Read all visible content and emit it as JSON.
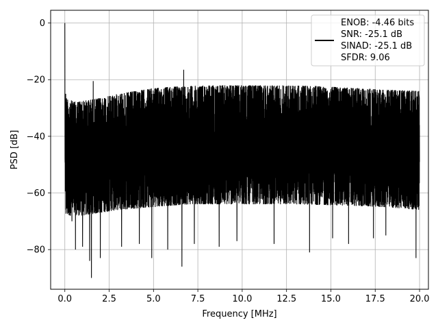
{
  "chart_data": {
    "type": "line",
    "xlabel": "Frequency [MHz]",
    "ylabel": "PSD [dB]",
    "xlim": [
      -0.8,
      20.5
    ],
    "ylim": [
      -94,
      4.5
    ],
    "grid": true,
    "x_ticks": [
      0.0,
      2.5,
      5.0,
      7.5,
      10.0,
      12.5,
      15.0,
      17.5,
      20.0
    ],
    "x_tick_labels": [
      "0.0",
      "2.5",
      "5.0",
      "7.5",
      "10.0",
      "12.5",
      "15.0",
      "17.5",
      "20.0"
    ],
    "y_ticks": [
      0,
      -20,
      -40,
      -60,
      -80
    ],
    "y_tick_labels": [
      "0",
      "−20",
      "−40",
      "−60",
      "−80"
    ],
    "legend": {
      "placement": "top-right",
      "entries": [
        "ENOB: -4.46 bits",
        "SNR: -25.1 dB",
        "SINAD: -25.1 dB",
        "SFDR: 9.06"
      ]
    },
    "series": [
      {
        "color": "#000000",
        "x_range": [
          0,
          20
        ],
        "points": 4000,
        "upper_envelope": [
          [
            0.0,
            -26
          ],
          [
            0.5,
            -27.8
          ],
          [
            1.0,
            -27.5
          ],
          [
            2.0,
            -26.5
          ],
          [
            3.0,
            -25
          ],
          [
            4.0,
            -24
          ],
          [
            5.0,
            -23
          ],
          [
            6.0,
            -22.5
          ],
          [
            8.0,
            -22
          ],
          [
            10.0,
            -22
          ],
          [
            12.0,
            -22
          ],
          [
            14.0,
            -22.2
          ],
          [
            16.0,
            -22.8
          ],
          [
            18.0,
            -23.5
          ],
          [
            20.0,
            -24
          ]
        ],
        "lower_envelope": [
          [
            0.0,
            -68
          ],
          [
            1.0,
            -68
          ],
          [
            3.0,
            -66
          ],
          [
            5.0,
            -65
          ],
          [
            7.0,
            -64
          ],
          [
            10.0,
            -64
          ],
          [
            13.0,
            -64
          ],
          [
            16.0,
            -64.5
          ],
          [
            18.0,
            -65
          ],
          [
            20.0,
            -66
          ]
        ],
        "peaks": [
          {
            "x": 0.0,
            "y": 0
          },
          {
            "x": 0.05,
            "y": -25
          },
          {
            "x": 1.6,
            "y": -20.5
          },
          {
            "x": 6.7,
            "y": -16.5
          }
        ],
        "dips": [
          {
            "x": 0.4,
            "y": -70
          },
          {
            "x": 0.6,
            "y": -80
          },
          {
            "x": 1.0,
            "y": -79
          },
          {
            "x": 1.4,
            "y": -84
          },
          {
            "x": 1.5,
            "y": -90
          },
          {
            "x": 2.0,
            "y": -83
          },
          {
            "x": 3.2,
            "y": -79
          },
          {
            "x": 4.2,
            "y": -78
          },
          {
            "x": 4.9,
            "y": -83
          },
          {
            "x": 5.8,
            "y": -80
          },
          {
            "x": 6.6,
            "y": -86
          },
          {
            "x": 7.3,
            "y": -78
          },
          {
            "x": 8.7,
            "y": -79
          },
          {
            "x": 9.7,
            "y": -77
          },
          {
            "x": 11.8,
            "y": -78
          },
          {
            "x": 13.8,
            "y": -81
          },
          {
            "x": 15.1,
            "y": -76
          },
          {
            "x": 16.0,
            "y": -78
          },
          {
            "x": 17.4,
            "y": -76
          },
          {
            "x": 18.1,
            "y": -75
          },
          {
            "x": 19.8,
            "y": -83
          }
        ]
      }
    ]
  }
}
